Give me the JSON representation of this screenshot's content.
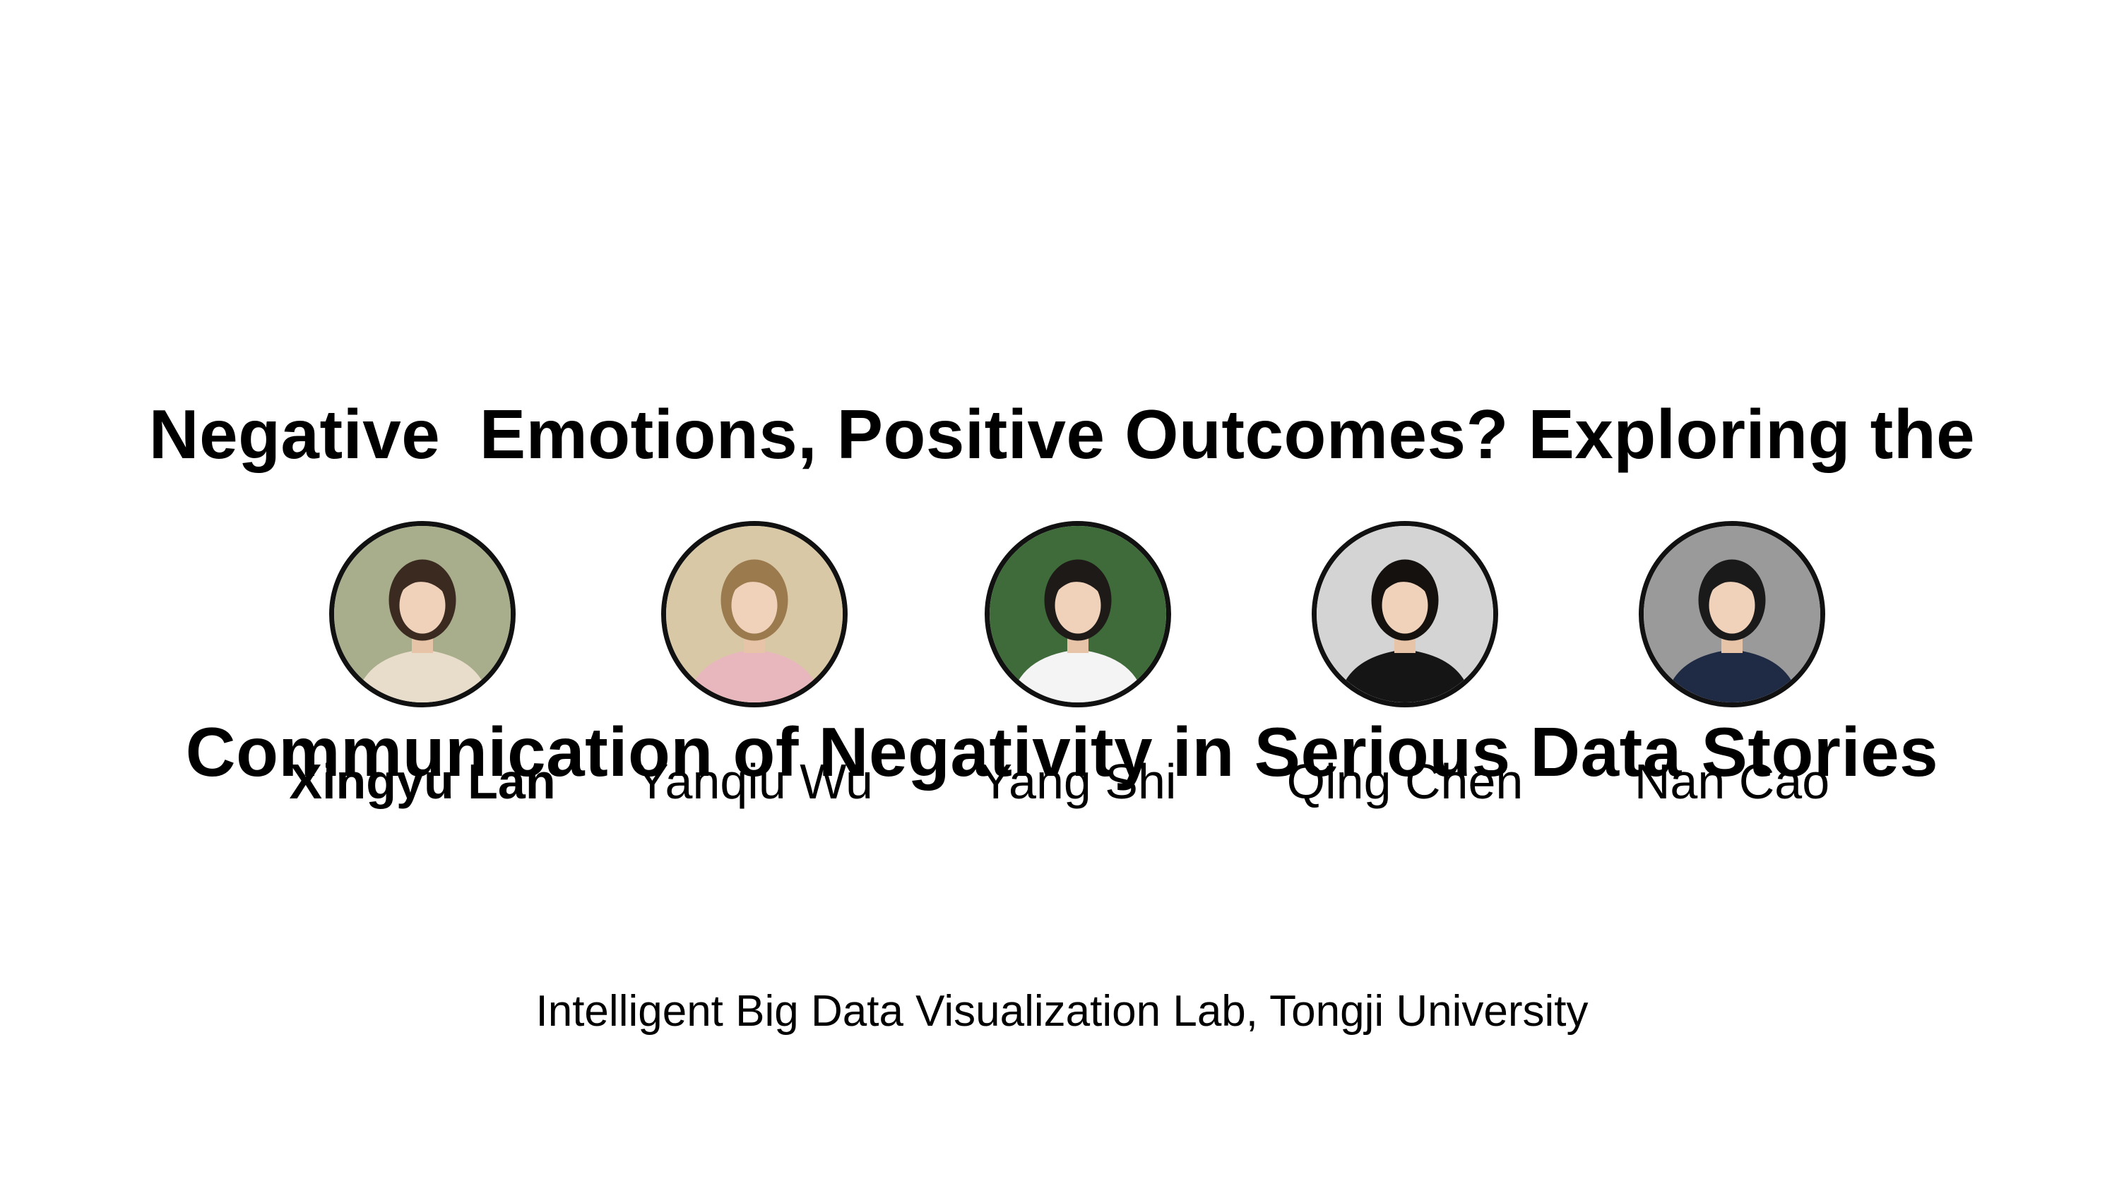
{
  "slide": {
    "title_lines": [
      "Negative  Emotions, Positive Outcomes? Exploring the",
      "Communication of Negativity in Serious Data Stories"
    ],
    "authors": [
      {
        "name": "Xingyu Lan",
        "emphasis": true,
        "photo_bg": "#a8ad8b",
        "hair": "#3a2a20",
        "clothing": "#e8dccb"
      },
      {
        "name": "Yanqiu Wu",
        "emphasis": false,
        "photo_bg": "#d8c8a6",
        "hair": "#9b7a4e",
        "clothing": "#e8b7bd"
      },
      {
        "name": "Yang Shi",
        "emphasis": false,
        "photo_bg": "#3f6b3a",
        "hair": "#1e1a18",
        "clothing": "#f4f4f4"
      },
      {
        "name": "Qing Chen",
        "emphasis": false,
        "photo_bg": "#d4d4d4",
        "hair": "#15110f",
        "clothing": "#151515"
      },
      {
        "name": "Nan Cao",
        "emphasis": false,
        "photo_bg": "#9a9a9a",
        "hair": "#1a1a1a",
        "clothing": "#1f2a44"
      }
    ],
    "affiliation": "Intelligent Big Data Visualization Lab, Tongji University"
  },
  "colors": {
    "background": "#ffffff",
    "text": "#000000",
    "avatar_border": "#111111"
  }
}
